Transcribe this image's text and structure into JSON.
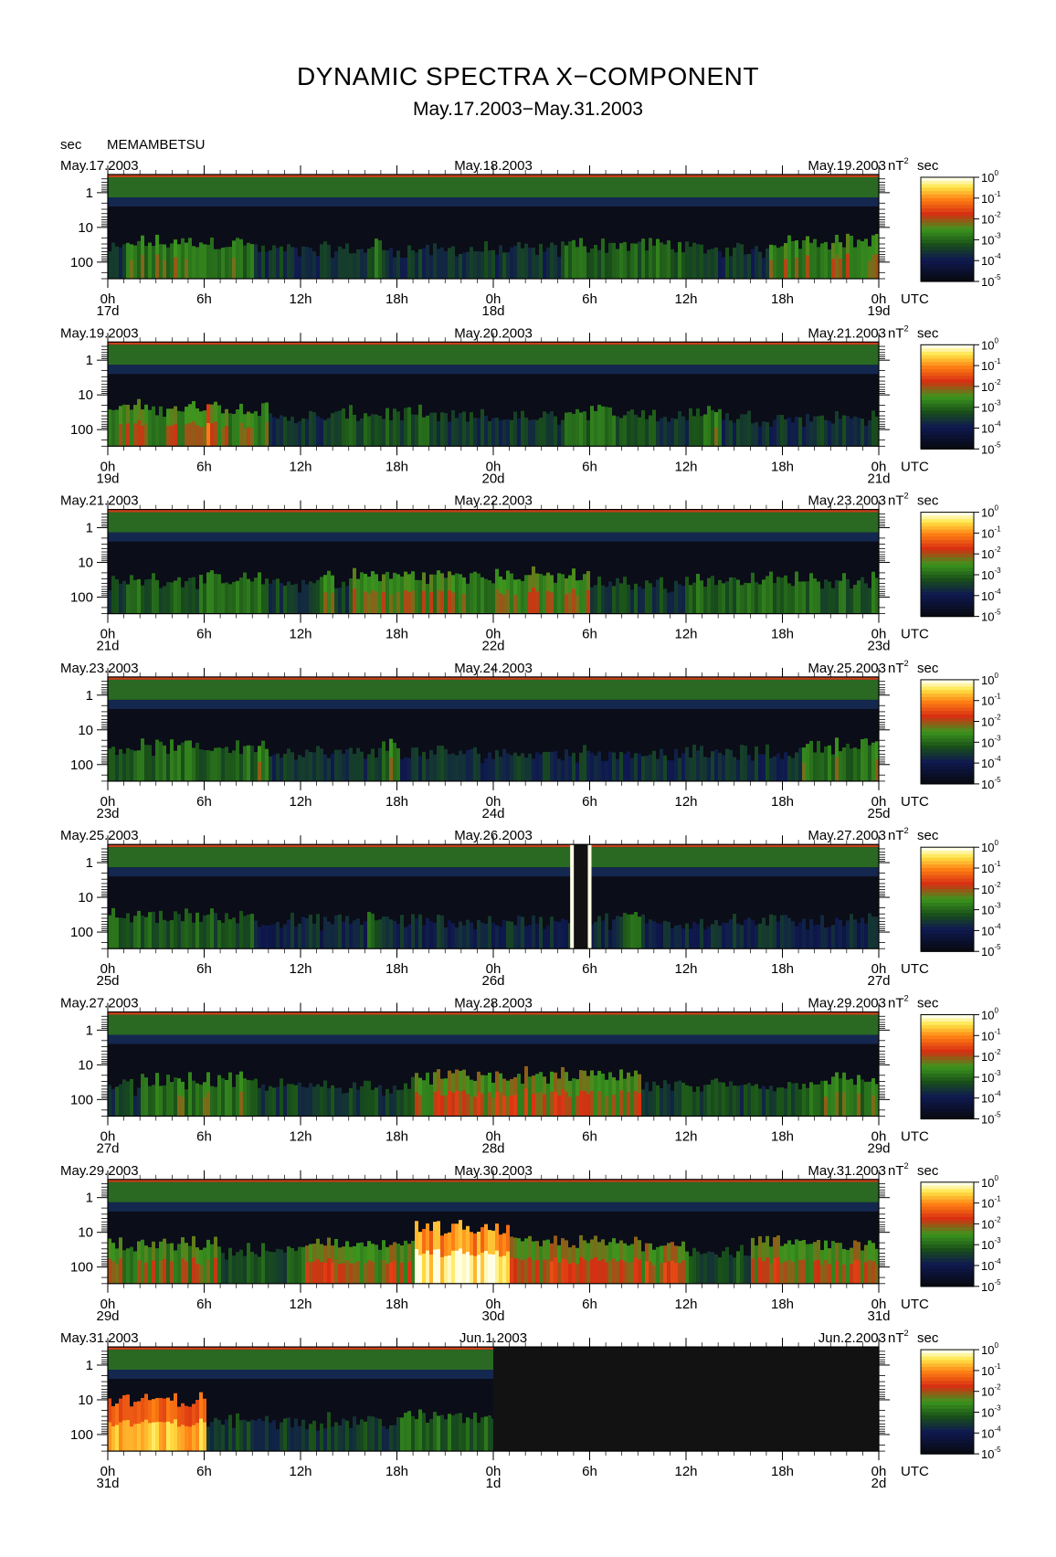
{
  "title": "DYNAMIC SPECTRA X−COMPONENT",
  "subtitle": "May.17.2003−May.31.2003",
  "station": "MEMAMBETSU",
  "y_unit": "sec",
  "colorbar_unit_prefix": "nT",
  "colorbar_unit_exp": "2",
  "colorbar_unit_suffix": "sec",
  "time_label": "UTC",
  "y_ticks": [
    "1",
    "10",
    "100"
  ],
  "x_ticks": [
    "0h",
    "6h",
    "12h",
    "18h",
    "0h",
    "6h",
    "12h",
    "18h",
    "0h"
  ],
  "colorbar_ticks": [
    {
      "base": "10",
      "exp": "0"
    },
    {
      "base": "10",
      "exp": "-1"
    },
    {
      "base": "10",
      "exp": "-2"
    },
    {
      "base": "10",
      "exp": "-3"
    },
    {
      "base": "10",
      "exp": "-4"
    },
    {
      "base": "10",
      "exp": "-5"
    }
  ],
  "colors": {
    "background_dark": "#0b0d18",
    "high_band": "#2f7a25",
    "activity_green": "#3a9a1c",
    "activity_red": "#d62a12",
    "peak_yellow": "#ffe640",
    "no_data": "#121212"
  },
  "chart_data": {
    "type": "heatmap",
    "title": "DYNAMIC SPECTRA X−COMPONENT",
    "subtitle": "May.17.2003−May.31.2003",
    "ylabel": "sec",
    "y_scale": "log",
    "y_range_sec": [
      0.3,
      300
    ],
    "y_direction": "period increases downward",
    "color_scale": "log",
    "color_range": [
      1e-05,
      1
    ],
    "color_unit": "nT^2 sec",
    "colormap": [
      "#000000",
      "#0d1a5a",
      "#1e6b1e",
      "#4caf28",
      "#e02a10",
      "#ff8a10",
      "#ffffff"
    ],
    "panels": [
      {
        "left_date": "May.17.2003",
        "mid_date": "May.18.2003",
        "right_date": "May.19.2003",
        "day_labels": [
          "17d",
          "18d",
          "19d"
        ],
        "activity_segments": [
          {
            "start_h": 0,
            "end_h": 48,
            "level": 0.32
          },
          {
            "start_h": 1,
            "end_h": 9,
            "level": 0.5
          },
          {
            "start_h": 16,
            "end_h": 17,
            "level": 0.45
          },
          {
            "start_h": 28,
            "end_h": 36,
            "level": 0.45
          },
          {
            "start_h": 41,
            "end_h": 48,
            "level": 0.55
          }
        ],
        "no_data": []
      },
      {
        "left_date": "May.19.2003",
        "mid_date": "May.20.2003",
        "right_date": "May.21.2003",
        "day_labels": [
          "19d",
          "20d",
          "21d"
        ],
        "activity_segments": [
          {
            "start_h": 0,
            "end_h": 48,
            "level": 0.32
          },
          {
            "start_h": 0,
            "end_h": 10,
            "level": 0.55
          },
          {
            "start_h": 6,
            "end_h": 6.3,
            "level": 0.8
          },
          {
            "start_h": 14,
            "end_h": 20,
            "level": 0.4
          },
          {
            "start_h": 28,
            "end_h": 34,
            "level": 0.45
          },
          {
            "start_h": 36,
            "end_h": 38,
            "level": 0.5
          }
        ],
        "no_data": []
      },
      {
        "left_date": "May.21.2003",
        "mid_date": "May.22.2003",
        "right_date": "May.23.2003",
        "day_labels": [
          "21d",
          "22d",
          "23d"
        ],
        "activity_segments": [
          {
            "start_h": 0,
            "end_h": 48,
            "level": 0.35
          },
          {
            "start_h": 1,
            "end_h": 10,
            "level": 0.45
          },
          {
            "start_h": 13,
            "end_h": 14,
            "level": 0.55
          },
          {
            "start_h": 15,
            "end_h": 17,
            "level": 0.55
          },
          {
            "start_h": 17,
            "end_h": 30,
            "level": 0.55
          },
          {
            "start_h": 36,
            "end_h": 48,
            "level": 0.45
          }
        ],
        "no_data": []
      },
      {
        "left_date": "May.23.2003",
        "mid_date": "May.24.2003",
        "right_date": "May.25.2003",
        "day_labels": [
          "23d",
          "24d",
          "25d"
        ],
        "activity_segments": [
          {
            "start_h": 0,
            "end_h": 48,
            "level": 0.3
          },
          {
            "start_h": 0,
            "end_h": 10,
            "level": 0.45
          },
          {
            "start_h": 9,
            "end_h": 10,
            "level": 0.5
          },
          {
            "start_h": 17,
            "end_h": 18,
            "level": 0.5
          },
          {
            "start_h": 43,
            "end_h": 48,
            "level": 0.5
          }
        ],
        "no_data": []
      },
      {
        "left_date": "May.25.2003",
        "mid_date": "May.26.2003",
        "right_date": "May.27.2003",
        "day_labels": [
          "25d",
          "26d",
          "27d"
        ],
        "activity_segments": [
          {
            "start_h": 0,
            "end_h": 48,
            "level": 0.28
          },
          {
            "start_h": 0,
            "end_h": 9,
            "level": 0.42
          },
          {
            "start_h": 16,
            "end_h": 17,
            "level": 0.45
          },
          {
            "start_h": 32,
            "end_h": 33,
            "level": 0.45
          }
        ],
        "no_data": [
          {
            "start_h": 29.0,
            "end_h": 30.0
          }
        ],
        "spikes": [
          {
            "h": 28.9,
            "level": 1.0
          },
          {
            "h": 30.0,
            "level": 1.0
          }
        ]
      },
      {
        "left_date": "May.27.2003",
        "mid_date": "May.28.2003",
        "right_date": "May.29.2003",
        "day_labels": [
          "27d",
          "28d",
          "29d"
        ],
        "activity_segments": [
          {
            "start_h": 0,
            "end_h": 48,
            "level": 0.35
          },
          {
            "start_h": 2,
            "end_h": 9,
            "level": 0.5
          },
          {
            "start_h": 19,
            "end_h": 33,
            "level": 0.6
          },
          {
            "start_h": 43,
            "end_h": 48,
            "level": 0.5
          }
        ],
        "no_data": []
      },
      {
        "left_date": "May.29.2003",
        "mid_date": "May.30.2003",
        "right_date": "May.31.2003",
        "day_labels": [
          "29d",
          "30d",
          "31d"
        ],
        "activity_segments": [
          {
            "start_h": 0,
            "end_h": 48,
            "level": 0.4
          },
          {
            "start_h": 0,
            "end_h": 7,
            "level": 0.55
          },
          {
            "start_h": 12,
            "end_h": 19,
            "level": 0.6
          },
          {
            "start_h": 19,
            "end_h": 25,
            "level": 0.95
          },
          {
            "start_h": 25,
            "end_h": 36,
            "level": 0.62
          },
          {
            "start_h": 40,
            "end_h": 48,
            "level": 0.6
          }
        ],
        "no_data": []
      },
      {
        "left_date": "May.31.2003",
        "mid_date": "Jun.1.2003",
        "right_date": "Jun.2.2003",
        "day_labels": [
          "31d",
          "1d",
          "2d"
        ],
        "activity_segments": [
          {
            "start_h": 0,
            "end_h": 24,
            "level": 0.35
          },
          {
            "start_h": 0,
            "end_h": 6,
            "level": 0.85
          },
          {
            "start_h": 18,
            "end_h": 24,
            "level": 0.45
          }
        ],
        "no_data": [
          {
            "start_h": 24,
            "end_h": 48
          }
        ]
      }
    ]
  }
}
